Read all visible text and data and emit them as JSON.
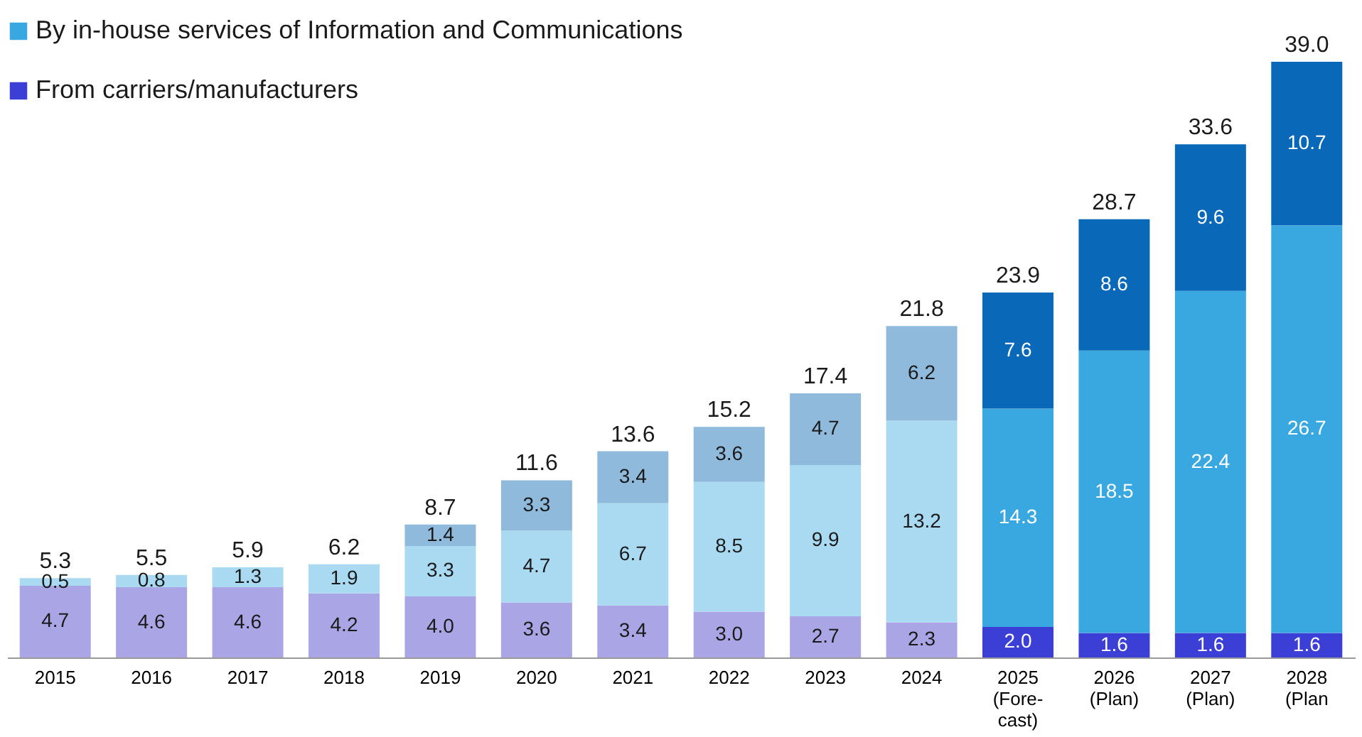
{
  "chart_data": {
    "type": "bar",
    "stacked": true,
    "legend": "top left",
    "grid": false,
    "categories": [
      "2015",
      "2016",
      "2017",
      "2018",
      "2019",
      "2020",
      "2021",
      "2022",
      "2023",
      "2024",
      "2025\n(Fore-\ncast)",
      "2026\n(Plan)",
      "2027\n(Plan)",
      "2028\n(Plan"
    ],
    "series": [
      {
        "name": "From carriers/manufacturers",
        "color": "#3b3fd6",
        "colors": [
          "#aaa6e6",
          "#aaa6e6",
          "#aaa6e6",
          "#aaa6e6",
          "#aaa6e6",
          "#aaa6e6",
          "#aaa6e6",
          "#aaa6e6",
          "#aaa6e6",
          "#aaa6e6",
          "#3b3fd6",
          "#3b3fd6",
          "#3b3fd6",
          "#3b3fd6"
        ],
        "values": [
          4.7,
          4.6,
          4.6,
          4.2,
          4.0,
          3.6,
          3.4,
          3.0,
          2.7,
          2.3,
          2.0,
          1.6,
          1.6,
          1.6
        ],
        "value_labels": [
          "4.7",
          "4.6",
          "4.6",
          "4.2",
          "4.0",
          "3.6",
          "3.4",
          "3.0",
          "2.7",
          "2.3",
          "2.0",
          "1.6",
          "1.6",
          "1.6"
        ]
      },
      {
        "name": "By in-house services of Information and Communications",
        "color": "#3aa8e0",
        "colors": [
          "#a9daf2",
          "#a9daf2",
          "#a9daf2",
          "#a9daf2",
          "#a9daf2",
          "#a9daf2",
          "#a9daf2",
          "#a9daf2",
          "#a9daf2",
          "#a9daf2",
          "#3aa8e0",
          "#3aa8e0",
          "#3aa8e0",
          "#3aa8e0"
        ],
        "values": [
          0.5,
          0.8,
          1.3,
          1.9,
          3.3,
          4.7,
          6.7,
          8.5,
          9.9,
          13.2,
          14.3,
          18.5,
          22.4,
          26.7
        ],
        "value_labels": [
          "0.5",
          "0.8",
          "1.3",
          "1.9",
          "3.3",
          "4.7",
          "6.7",
          "8.5",
          "9.9",
          "13.2",
          "14.3",
          "18.5",
          "22.4",
          "26.7"
        ]
      },
      {
        "colors": [
          "#8fbadc",
          "#8fbadc",
          "#8fbadc",
          "#8fbadc",
          "#8fbadc",
          "#8fbadc",
          "#8fbadc",
          "#8fbadc",
          "#8fbadc",
          "#8fbadc",
          "#0a68b8",
          "#0a68b8",
          "#0a68b8",
          "#0a68b8"
        ],
        "values": [
          null,
          null,
          null,
          null,
          1.4,
          3.3,
          3.4,
          3.6,
          4.7,
          6.2,
          7.6,
          8.6,
          9.6,
          10.7
        ],
        "value_labels": [
          null,
          null,
          null,
          null,
          "1.4",
          "3.3",
          "3.4",
          "3.6",
          "4.7",
          "6.2",
          "7.6",
          "8.6",
          "9.6",
          "10.7"
        ]
      }
    ],
    "totals": [
      "5.3",
      "5.5",
      "5.9",
      "6.2",
      "8.7",
      "11.6",
      "13.6",
      "15.2",
      "17.4",
      "21.8",
      "23.9",
      "28.7",
      "33.6",
      "39.0"
    ]
  }
}
